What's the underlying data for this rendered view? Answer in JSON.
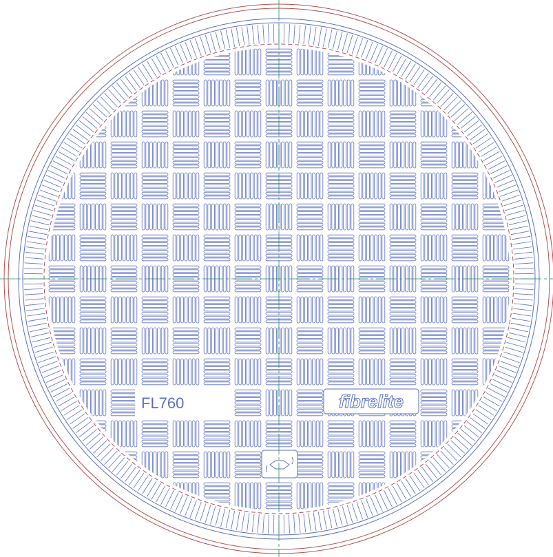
{
  "labels": {
    "model": "FL760",
    "brand": "fibrelite"
  }
}
